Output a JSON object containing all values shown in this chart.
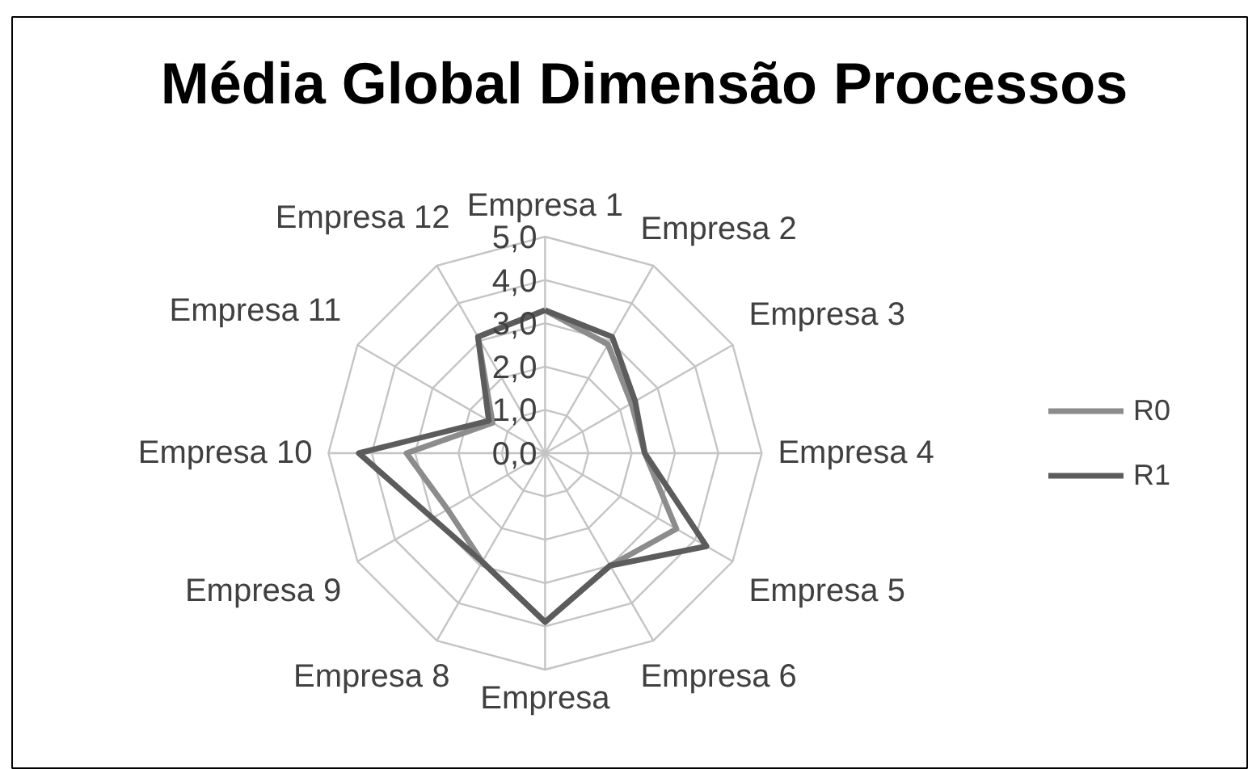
{
  "chart_data": {
    "type": "radar",
    "title": "Média Global Dimensão Processos",
    "categories": [
      "Empresa 1",
      "Empresa 2",
      "Empresa 3",
      "Empresa 4",
      "Empresa 5",
      "Empresa 6",
      "Empresa",
      "Empresa 8",
      "Empresa 9",
      "Empresa 10",
      "Empresa 11",
      "Empresa 12"
    ],
    "series": [
      {
        "name": "R0",
        "color": "#8c8c8c",
        "values": [
          3.3,
          2.9,
          2.3,
          2.3,
          3.5,
          3.0,
          3.9,
          2.9,
          2.6,
          3.2,
          1.4,
          3.1
        ]
      },
      {
        "name": "R1",
        "color": "#5c5c5c",
        "values": [
          3.3,
          3.1,
          2.4,
          2.3,
          4.3,
          3.0,
          3.9,
          2.9,
          3.0,
          4.3,
          1.5,
          3.1
        ]
      }
    ],
    "ylim": [
      0,
      5
    ],
    "yticks": [
      {
        "value": 0,
        "label": "0,0"
      },
      {
        "value": 1,
        "label": "1,0"
      },
      {
        "value": 2,
        "label": "2,0"
      },
      {
        "value": 3,
        "label": "3,0"
      },
      {
        "value": 4,
        "label": "4,0"
      },
      {
        "value": 5,
        "label": "5,0"
      }
    ],
    "grid": true,
    "legend": "right",
    "line_style": "solid"
  }
}
